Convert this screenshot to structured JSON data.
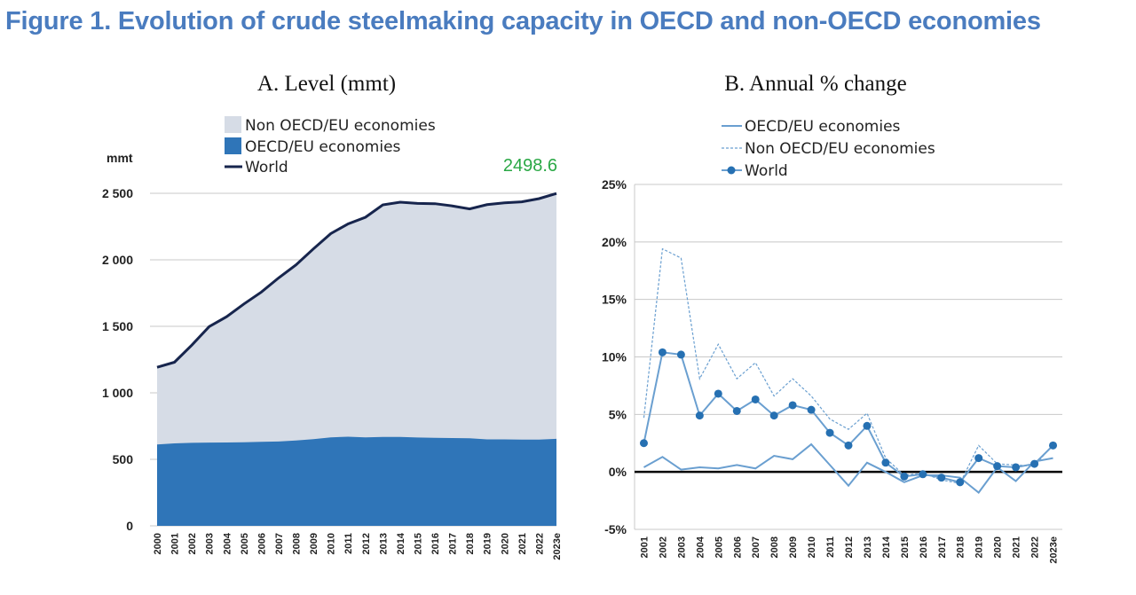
{
  "figure_title": "Figure  1. Evolution of crude steelmaking capacity in OECD and non-OECD economies",
  "colors": {
    "title": "#4a7cbf",
    "non_oecd_area": "#d6dce6",
    "oecd_area": "#2f75b8",
    "world_line": "#17254d",
    "b_line": "#6a9fd0",
    "b_world": "#2670b2",
    "annotation": "#2aa845"
  },
  "chart_data": [
    {
      "type": "area",
      "title": "A. Level (mmt)",
      "ylabel": "mmt",
      "xlabel": "",
      "ylim": [
        0,
        2500
      ],
      "yticks": [
        0,
        500,
        1000,
        1500,
        2000,
        2500
      ],
      "ytick_labels": [
        "0",
        "500",
        "1 000",
        "1 500",
        "2 000",
        "2 500"
      ],
      "categories": [
        "2000",
        "2001",
        "2002",
        "2003",
        "2004",
        "2005",
        "2006",
        "2007",
        "2008",
        "2009",
        "2010",
        "2011",
        "2012",
        "2013",
        "2014",
        "2015",
        "2016",
        "2017",
        "2018",
        "2019",
        "2020",
        "2021",
        "2022",
        "2023e"
      ],
      "series": [
        {
          "name": "Non OECD/EU economies",
          "kind": "area",
          "values": [
            580,
            610,
            735,
            872,
            945,
            1040,
            1125,
            1230,
            1320,
            1430,
            1532,
            1600,
            1655,
            1745,
            1765,
            1760,
            1760,
            1745,
            1725,
            1765,
            1778,
            1788,
            1812,
            1845
          ]
        },
        {
          "name": "OECD/EU economies",
          "kind": "area",
          "values": [
            612,
            620,
            624,
            626,
            627,
            628,
            632,
            634,
            642,
            652,
            665,
            670,
            665,
            668,
            668,
            664,
            662,
            660,
            658,
            650,
            650,
            648,
            648,
            654
          ]
        },
        {
          "name": "World",
          "kind": "line",
          "values": [
            1192,
            1230,
            1359,
            1498,
            1572,
            1668,
            1757,
            1864,
            1962,
            2082,
            2197,
            2270,
            2320,
            2413,
            2433,
            2424,
            2422,
            2405,
            2383,
            2415,
            2428,
            2436,
            2460,
            2498.6
          ]
        }
      ],
      "annotation": "2498.6",
      "legend_position": "top-left",
      "grid": "horizontal"
    },
    {
      "type": "line",
      "title": "B. Annual % change",
      "ylabel": "",
      "xlabel": "",
      "ylim": [
        -5,
        25
      ],
      "yticks": [
        -5,
        0,
        5,
        10,
        15,
        20,
        25
      ],
      "ytick_labels": [
        "-5%",
        "0%",
        "5%",
        "10%",
        "15%",
        "20%",
        "25%"
      ],
      "categories": [
        "2001",
        "2002",
        "2003",
        "2004",
        "2005",
        "2006",
        "2007",
        "2008",
        "2009",
        "2010",
        "2011",
        "2012",
        "2013",
        "2014",
        "2015",
        "2016",
        "2017",
        "2018",
        "2019",
        "2020",
        "2021",
        "2022",
        "2023e"
      ],
      "series": [
        {
          "name": "OECD/EU economies",
          "style": "solid",
          "values": [
            0.4,
            1.3,
            0.2,
            0.4,
            0.3,
            0.6,
            0.3,
            1.4,
            1.1,
            2.4,
            0.6,
            -1.2,
            0.8,
            0.0,
            -0.9,
            -0.3,
            -0.3,
            -0.5,
            -1.8,
            0.4,
            -0.8,
            0.9,
            1.2
          ]
        },
        {
          "name": "Non OECD/EU economies",
          "style": "dashed",
          "values": [
            4.7,
            19.4,
            18.6,
            8.1,
            11.1,
            8.1,
            9.5,
            6.6,
            8.1,
            6.6,
            4.6,
            3.7,
            5.1,
            1.2,
            -0.3,
            -0.1,
            -0.7,
            -1.0,
            2.3,
            0.7,
            0.6,
            0.5,
            2.4
          ]
        },
        {
          "name": "World",
          "style": "marker",
          "values": [
            2.5,
            10.4,
            10.2,
            4.9,
            6.8,
            5.3,
            6.3,
            4.9,
            5.8,
            5.4,
            3.4,
            2.3,
            4.0,
            0.8,
            -0.4,
            -0.2,
            -0.5,
            -0.9,
            1.2,
            0.5,
            0.4,
            0.7,
            2.3
          ]
        }
      ],
      "legend_position": "top-left",
      "grid": "horizontal"
    }
  ]
}
